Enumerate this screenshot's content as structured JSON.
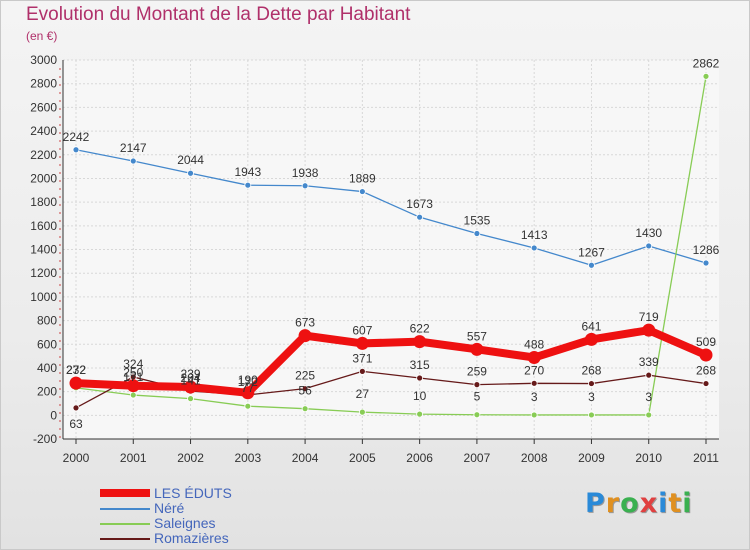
{
  "header": {
    "title": "Evolution du Montant de la Dette par Habitant",
    "subtitle": "(en €)"
  },
  "logo": {
    "text": "Proxiti",
    "colors": [
      "#2a8ad8",
      "#e09020",
      "#3ab050",
      "#e04040",
      "#2a8ad8",
      "#e09020",
      "#3ab050"
    ]
  },
  "chart_data": {
    "type": "line",
    "title": "Evolution du Montant de la Dette par Habitant",
    "subtitle": "(en €)",
    "xlabel": "",
    "ylabel": "",
    "x": [
      "2000",
      "2001",
      "2002",
      "2003",
      "2004",
      "2005",
      "2006",
      "2007",
      "2008",
      "2009",
      "2010",
      "2011"
    ],
    "ylim": [
      -200,
      3000
    ],
    "yticks": [
      "-200",
      "0",
      "200",
      "400",
      "600",
      "800",
      "1000",
      "1200",
      "1400",
      "1600",
      "1800",
      "2000",
      "2200",
      "2400",
      "2600",
      "2800",
      "3000"
    ],
    "grid": true,
    "legend_position": "bottom-left",
    "series": [
      {
        "name": "LES ÉDUTS",
        "color": "#ee1111",
        "thick": true,
        "values": [
          272,
          250,
          239,
          190,
          673,
          607,
          622,
          557,
          488,
          641,
          719,
          509
        ],
        "labels": [
          "272",
          "250",
          "239",
          "190",
          "673",
          "607",
          "622",
          "557",
          "488",
          "641",
          "719",
          "509"
        ]
      },
      {
        "name": "Néré",
        "color": "#4488cc",
        "thick": false,
        "values": [
          2242,
          2147,
          2044,
          1943,
          1938,
          1889,
          1673,
          1535,
          1413,
          1267,
          1430,
          1286
        ],
        "labels": [
          "2242",
          "2147",
          "2044",
          "1943",
          "1938",
          "1889",
          "1673",
          "1535",
          "1413",
          "1267",
          "1430",
          "1286"
        ]
      },
      {
        "name": "Saleignes",
        "color": "#88cc55",
        "thick": false,
        "values": [
          232,
          171,
          141,
          77,
          56,
          27,
          10,
          5,
          3,
          3,
          3,
          2862
        ],
        "labels": [
          "232",
          "171",
          "141",
          "77",
          "56",
          "27",
          "10",
          "5",
          "3",
          "3",
          "3",
          "2862"
        ]
      },
      {
        "name": "Romazières",
        "color": "#661a1a",
        "thick": false,
        "values": [
          63,
          324,
          204,
          172,
          225,
          371,
          315,
          259,
          270,
          268,
          339,
          268
        ],
        "labels": [
          "63",
          "324",
          "204",
          "172",
          "225",
          "371",
          "315",
          "259",
          "270",
          "268",
          "339",
          "268"
        ]
      }
    ]
  }
}
